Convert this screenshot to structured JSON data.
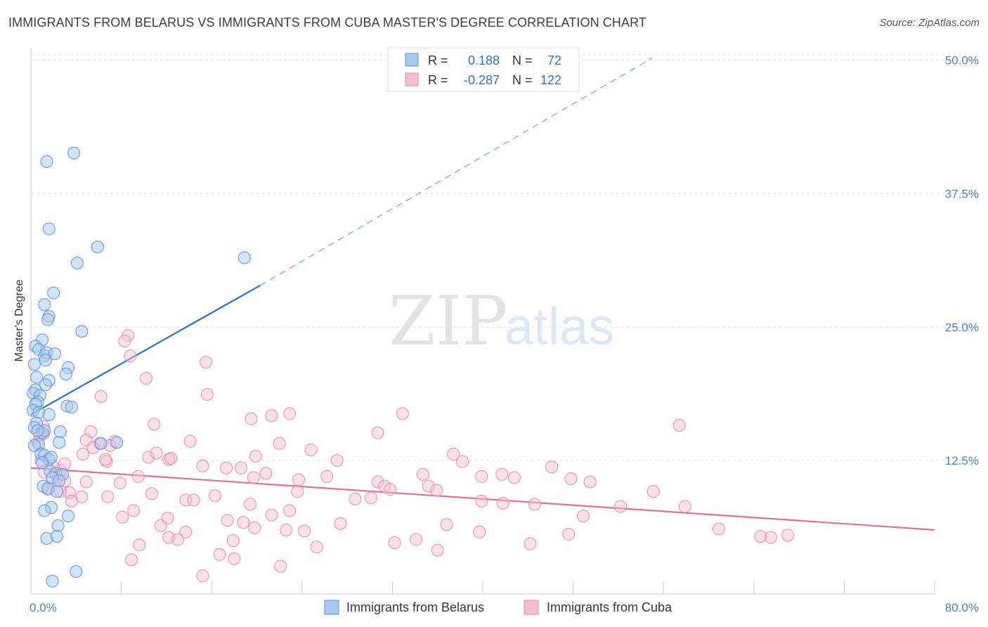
{
  "header": {
    "title": "IMMIGRANTS FROM BELARUS VS IMMIGRANTS FROM CUBA MASTER'S DEGREE CORRELATION CHART",
    "source": "Source: ZipAtlas.com"
  },
  "watermark": {
    "part1": "ZIP",
    "part2": "atlas"
  },
  "colors": {
    "belarus_fill": "#a9c9f0",
    "belarus_stroke": "#5b93dc",
    "belarus_line": "#2a6fd0",
    "cuba_fill": "#f7bdd0",
    "cuba_stroke": "#e88aa9",
    "cuba_line": "#e0709a",
    "grid": "#e3e3e3",
    "tick_text": "#4a7fc9"
  },
  "chart_data": {
    "type": "scatter",
    "xlabel": "",
    "ylabel": "Master's Degree",
    "xlim": [
      0,
      80
    ],
    "ylim": [
      0,
      50.5
    ],
    "x_tick_labels": [
      "0.0%",
      "80.0%"
    ],
    "y_ticks": [
      12.5,
      25.0,
      37.5,
      50.0
    ],
    "y_tick_labels": [
      "12.5%",
      "25.0%",
      "37.5%",
      "50.0%"
    ],
    "grid": true,
    "legend_position": "bottom-center",
    "stats": {
      "r_label": "R =",
      "n_label": "N =",
      "rows": [
        {
          "r": "0.188",
          "n": "72"
        },
        {
          "r": "-0.287",
          "n": "122"
        }
      ]
    },
    "series": [
      {
        "name": "Immigrants from Belarus",
        "trend": {
          "x0": 0,
          "y0": 16.8,
          "x1": 20.3,
          "y1": 28.9,
          "dash_x1": 55,
          "dash_y1": 50.2
        },
        "points": [
          [
            1.4,
            40.5
          ],
          [
            3.8,
            41.3
          ],
          [
            1.6,
            34.2
          ],
          [
            4.1,
            31.0
          ],
          [
            5.9,
            32.5
          ],
          [
            18.9,
            31.5
          ],
          [
            2.0,
            28.2
          ],
          [
            1.2,
            27.1
          ],
          [
            1.6,
            26.0
          ],
          [
            1.5,
            25.7
          ],
          [
            4.5,
            24.6
          ],
          [
            1.0,
            23.8
          ],
          [
            0.4,
            23.2
          ],
          [
            0.7,
            22.9
          ],
          [
            1.2,
            22.3
          ],
          [
            1.4,
            22.6
          ],
          [
            2.1,
            22.5
          ],
          [
            1.3,
            21.9
          ],
          [
            0.3,
            21.5
          ],
          [
            3.3,
            21.2
          ],
          [
            3.1,
            20.6
          ],
          [
            0.5,
            20.3
          ],
          [
            1.6,
            20.0
          ],
          [
            1.3,
            19.6
          ],
          [
            0.4,
            19.1
          ],
          [
            0.2,
            18.8
          ],
          [
            0.8,
            18.6
          ],
          [
            0.6,
            18.0
          ],
          [
            0.4,
            17.8
          ],
          [
            0.2,
            17.2
          ],
          [
            3.2,
            17.6
          ],
          [
            3.6,
            17.5
          ],
          [
            0.7,
            17.0
          ],
          [
            1.6,
            16.8
          ],
          [
            0.5,
            16.0
          ],
          [
            0.3,
            15.6
          ],
          [
            1.0,
            15.1
          ],
          [
            1.2,
            15.3
          ],
          [
            0.6,
            15.3
          ],
          [
            2.6,
            15.2
          ],
          [
            2.5,
            14.2
          ],
          [
            0.7,
            14.0
          ],
          [
            0.3,
            13.9
          ],
          [
            7.6,
            14.2
          ],
          [
            6.2,
            14.1
          ],
          [
            0.9,
            13.1
          ],
          [
            1.2,
            13.0
          ],
          [
            1.6,
            12.6
          ],
          [
            1.8,
            12.8
          ],
          [
            1.0,
            12.3
          ],
          [
            1.7,
            11.5
          ],
          [
            2.2,
            11.3
          ],
          [
            2.8,
            11.2
          ],
          [
            1.9,
            10.9
          ],
          [
            2.5,
            10.6
          ],
          [
            1.1,
            10.1
          ],
          [
            1.5,
            9.9
          ],
          [
            2.3,
            9.6
          ],
          [
            1.8,
            8.1
          ],
          [
            1.2,
            7.8
          ],
          [
            3.3,
            7.3
          ],
          [
            2.4,
            6.4
          ],
          [
            1.4,
            5.2
          ],
          [
            2.3,
            5.4
          ],
          [
            4.0,
            2.1
          ],
          [
            1.9,
            1.2
          ]
        ]
      },
      {
        "name": "Immigrants from Cuba",
        "trend": {
          "x0": 0,
          "y0": 11.8,
          "x1": 80,
          "y1": 6.0
        },
        "points": [
          [
            8.6,
            24.2
          ],
          [
            8.3,
            23.7
          ],
          [
            8.8,
            22.3
          ],
          [
            15.5,
            21.7
          ],
          [
            10.2,
            20.2
          ],
          [
            15.6,
            18.7
          ],
          [
            6.2,
            18.5
          ],
          [
            19.5,
            16.4
          ],
          [
            21.3,
            16.7
          ],
          [
            22.9,
            16.9
          ],
          [
            32.9,
            16.9
          ],
          [
            10.9,
            15.9
          ],
          [
            30.7,
            15.1
          ],
          [
            57.4,
            15.8
          ],
          [
            5.3,
            15.2
          ],
          [
            1.1,
            15.0
          ],
          [
            4.9,
            14.4
          ],
          [
            6.1,
            14.1
          ],
          [
            7.4,
            14.3
          ],
          [
            22.0,
            14.1
          ],
          [
            24.8,
            13.5
          ],
          [
            10.4,
            12.8
          ],
          [
            11.1,
            13.2
          ],
          [
            12.2,
            12.6
          ],
          [
            12.4,
            12.7
          ],
          [
            37.4,
            13.1
          ],
          [
            38.2,
            12.4
          ],
          [
            4.6,
            13.1
          ],
          [
            6.7,
            12.4
          ],
          [
            6.6,
            12.6
          ],
          [
            15.2,
            12.0
          ],
          [
            17.3,
            11.8
          ],
          [
            18.6,
            11.8
          ],
          [
            20.8,
            11.3
          ],
          [
            23.7,
            10.7
          ],
          [
            26.2,
            11.0
          ],
          [
            34.7,
            11.2
          ],
          [
            35.2,
            10.1
          ],
          [
            39.9,
            11.0
          ],
          [
            41.7,
            11.2
          ],
          [
            42.8,
            10.9
          ],
          [
            47.8,
            10.8
          ],
          [
            49.5,
            10.5
          ],
          [
            2.6,
            11.6
          ],
          [
            3.0,
            10.6
          ],
          [
            4.9,
            10.5
          ],
          [
            7.9,
            10.4
          ],
          [
            9.5,
            11.0
          ],
          [
            19.7,
            10.9
          ],
          [
            30.7,
            10.5
          ],
          [
            31.3,
            10.1
          ],
          [
            31.8,
            9.8
          ],
          [
            35.9,
            9.7
          ],
          [
            10.7,
            9.4
          ],
          [
            16.3,
            9.2
          ],
          [
            19.4,
            8.4
          ],
          [
            23.6,
            9.6
          ],
          [
            28.7,
            8.9
          ],
          [
            30.1,
            9.0
          ],
          [
            3.4,
            9.5
          ],
          [
            4.5,
            9.1
          ],
          [
            6.8,
            9.1
          ],
          [
            13.7,
            8.8
          ],
          [
            14.4,
            8.8
          ],
          [
            39.9,
            8.7
          ],
          [
            41.8,
            8.5
          ],
          [
            44.6,
            8.4
          ],
          [
            52.2,
            8.2
          ],
          [
            55.1,
            9.6
          ],
          [
            57.9,
            8.2
          ],
          [
            1.5,
            9.8
          ],
          [
            3.6,
            8.7
          ],
          [
            9.1,
            7.8
          ],
          [
            8.1,
            7.2
          ],
          [
            12.1,
            7.1
          ],
          [
            17.4,
            6.9
          ],
          [
            18.8,
            6.7
          ],
          [
            21.3,
            7.4
          ],
          [
            22.9,
            7.8
          ],
          [
            27.4,
            6.6
          ],
          [
            36.8,
            6.5
          ],
          [
            48.9,
            7.3
          ],
          [
            11.5,
            6.4
          ],
          [
            13.7,
            5.8
          ],
          [
            19.8,
            6.2
          ],
          [
            22.6,
            6.0
          ],
          [
            24.2,
            5.9
          ],
          [
            39.7,
            5.8
          ],
          [
            47.6,
            5.6
          ],
          [
            60.9,
            6.1
          ],
          [
            64.6,
            5.4
          ],
          [
            67.0,
            5.5
          ],
          [
            65.5,
            5.3
          ],
          [
            12.2,
            5.3
          ],
          [
            13.0,
            5.1
          ],
          [
            17.9,
            5.0
          ],
          [
            25.3,
            4.4
          ],
          [
            32.2,
            4.8
          ],
          [
            34.1,
            5.1
          ],
          [
            44.2,
            4.7
          ],
          [
            9.6,
            4.6
          ],
          [
            16.7,
            3.7
          ],
          [
            18.0,
            3.3
          ],
          [
            36.0,
            4.1
          ],
          [
            22.1,
            2.6
          ],
          [
            8.9,
            3.2
          ],
          [
            15.2,
            1.7
          ],
          [
            0.9,
            12.5
          ],
          [
            1.2,
            11.4
          ],
          [
            0.6,
            14.2
          ],
          [
            1.1,
            15.7
          ],
          [
            3.0,
            12.2
          ],
          [
            1.9,
            12.0
          ],
          [
            2.3,
            10.9
          ],
          [
            2.6,
            9.6
          ],
          [
            0.8,
            14.9
          ],
          [
            14.1,
            14.3
          ],
          [
            5.5,
            13.7
          ],
          [
            7.0,
            13.9
          ],
          [
            19.9,
            12.9
          ],
          [
            27.1,
            12.5
          ],
          [
            46.1,
            11.9
          ]
        ]
      }
    ]
  }
}
